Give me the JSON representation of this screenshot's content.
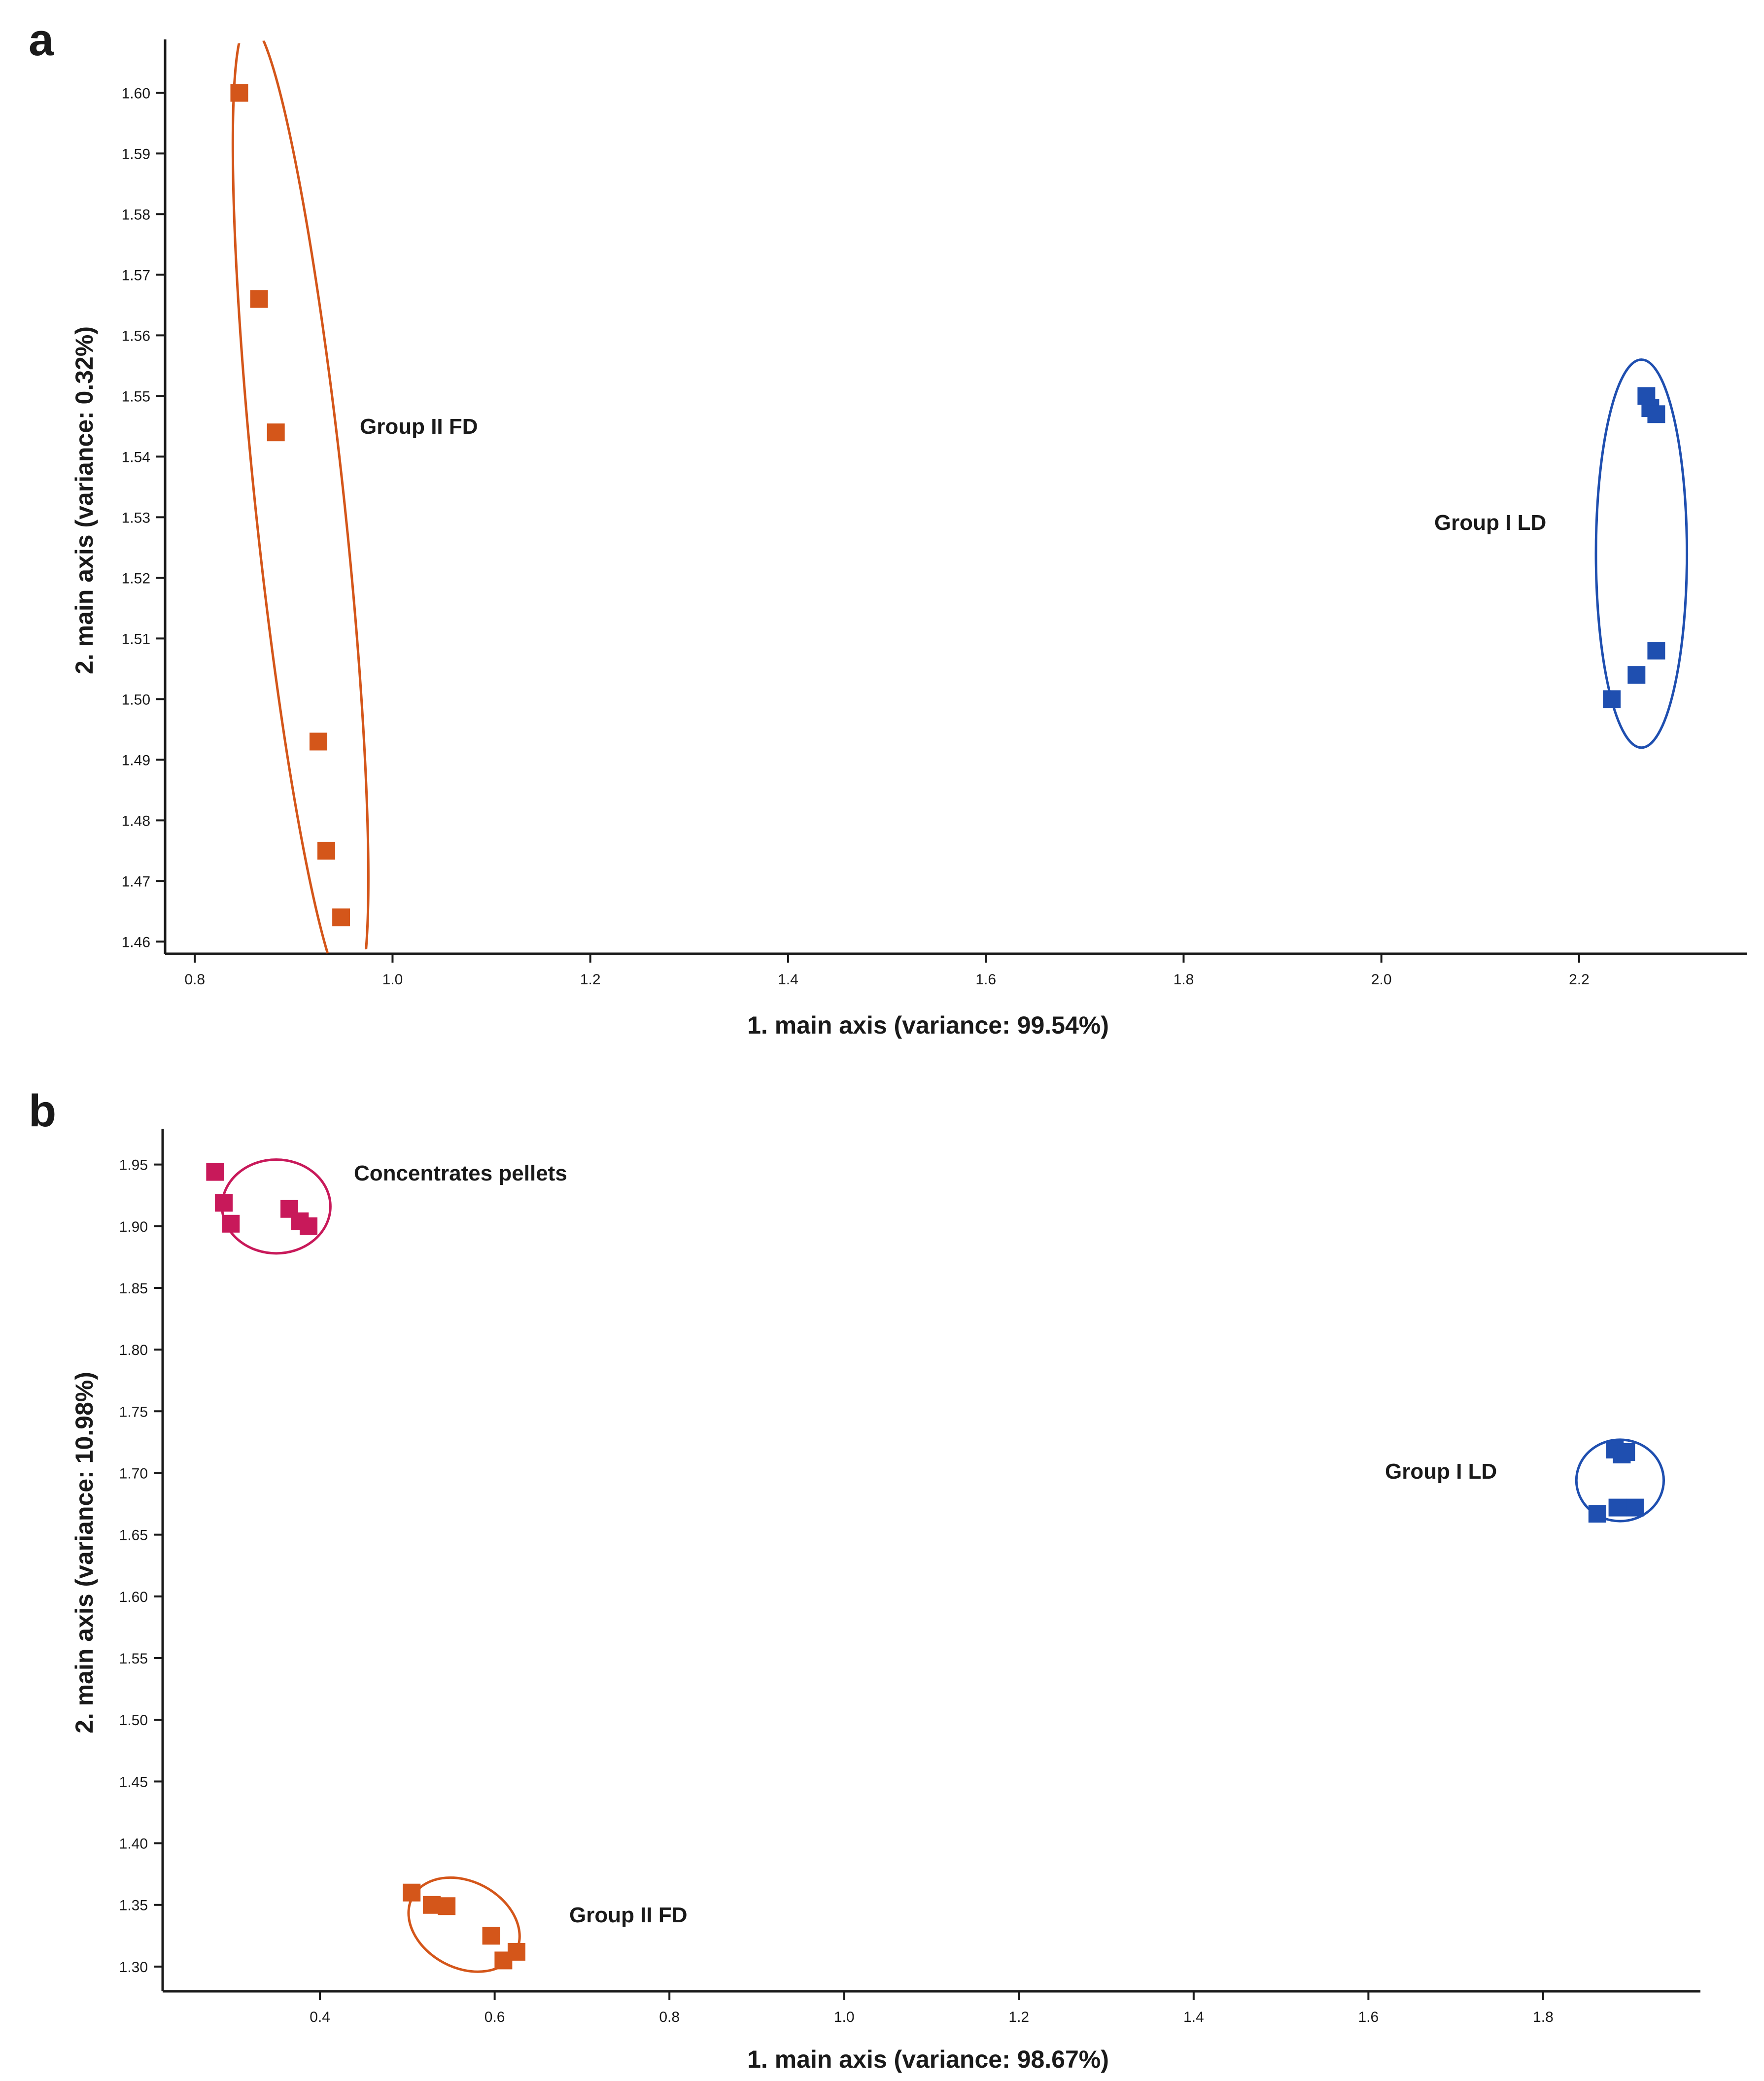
{
  "chart_data": [
    {
      "panel": "a",
      "type": "scatter",
      "title": "",
      "xlabel": "1. main axis (variance: 99.54%)",
      "ylabel": "2. main axis (variance: 0.32%)",
      "xlim": [
        0.77,
        2.37
      ],
      "ylim": [
        1.458,
        1.608
      ],
      "xticks": [
        "0.8",
        "1.0",
        "1.2",
        "1.4",
        "1.6",
        "1.8",
        "2.0",
        "2.2"
      ],
      "yticks": [
        "1.46",
        "1.47",
        "1.48",
        "1.49",
        "1.50",
        "1.51",
        "1.52",
        "1.53",
        "1.54",
        "1.55",
        "1.56",
        "1.57",
        "1.58",
        "1.59",
        "1.60"
      ],
      "grid": false,
      "series": [
        {
          "name": "Group II FD",
          "color": "#d4561a",
          "points": [
            [
              0.845,
              1.6
            ],
            [
              0.865,
              1.566
            ],
            [
              0.882,
              1.544
            ],
            [
              0.925,
              1.493
            ],
            [
              0.933,
              1.475
            ],
            [
              0.948,
              1.464
            ]
          ],
          "ellipse": {
            "cx": 0.907,
            "cy": 1.531,
            "rx": 0.045,
            "ry": 0.081,
            "angle": -6
          }
        },
        {
          "name": "Group I LD",
          "color": "#1f4fb0",
          "points": [
            [
              2.268,
              1.55
            ],
            [
              2.272,
              1.548
            ],
            [
              2.278,
              1.547
            ],
            [
              2.278,
              1.508
            ],
            [
              2.258,
              1.504
            ],
            [
              2.233,
              1.5
            ]
          ],
          "ellipse": {
            "cx": 2.263,
            "cy": 1.524,
            "rx": 0.046,
            "ry": 0.032,
            "angle": 0
          }
        }
      ]
    },
    {
      "panel": "b",
      "type": "scatter",
      "title": "",
      "xlabel": "1. main axis (variance: 98.67%)",
      "ylabel": "2. main axis (variance: 10.98%)",
      "xlim": [
        0.22,
        1.98
      ],
      "ylim": [
        1.28,
        1.975
      ],
      "xticks": [
        "0.4",
        "0.6",
        "0.8",
        "1.0",
        "1.2",
        "1.4",
        "1.6",
        "1.8"
      ],
      "yticks": [
        "1.30",
        "1.35",
        "1.40",
        "1.45",
        "1.50",
        "1.55",
        "1.60",
        "1.65",
        "1.70",
        "1.75",
        "1.80",
        "1.85",
        "1.90",
        "1.95"
      ],
      "grid": false,
      "series": [
        {
          "name": "Concentrates pellets",
          "color": "#c8195a",
          "points": [
            [
              0.28,
              1.944
            ],
            [
              0.29,
              1.919
            ],
            [
              0.298,
              1.902
            ],
            [
              0.365,
              1.914
            ],
            [
              0.377,
              1.904
            ],
            [
              0.387,
              1.9
            ]
          ],
          "ellipse": {
            "cx": 0.35,
            "cy": 1.916,
            "rx": 0.062,
            "ry": 0.038,
            "angle": 0
          }
        },
        {
          "name": "Group I LD",
          "color": "#1f4fb0",
          "points": [
            [
              1.882,
              1.719
            ],
            [
              1.89,
              1.715
            ],
            [
              1.895,
              1.717
            ],
            [
              1.862,
              1.667
            ],
            [
              1.885,
              1.672
            ],
            [
              1.905,
              1.672
            ]
          ],
          "ellipse": {
            "cx": 1.888,
            "cy": 1.694,
            "rx": 0.05,
            "ry": 0.033,
            "angle": 0
          }
        },
        {
          "name": "Group II FD",
          "color": "#d4561a",
          "points": [
            [
              0.505,
              1.36
            ],
            [
              0.528,
              1.35
            ],
            [
              0.545,
              1.349
            ],
            [
              0.596,
              1.325
            ],
            [
              0.61,
              1.305
            ],
            [
              0.625,
              1.312
            ]
          ],
          "ellipse": {
            "cx": 0.565,
            "cy": 1.334,
            "rx": 0.067,
            "ry": 0.035,
            "angle": 28
          }
        }
      ]
    }
  ]
}
